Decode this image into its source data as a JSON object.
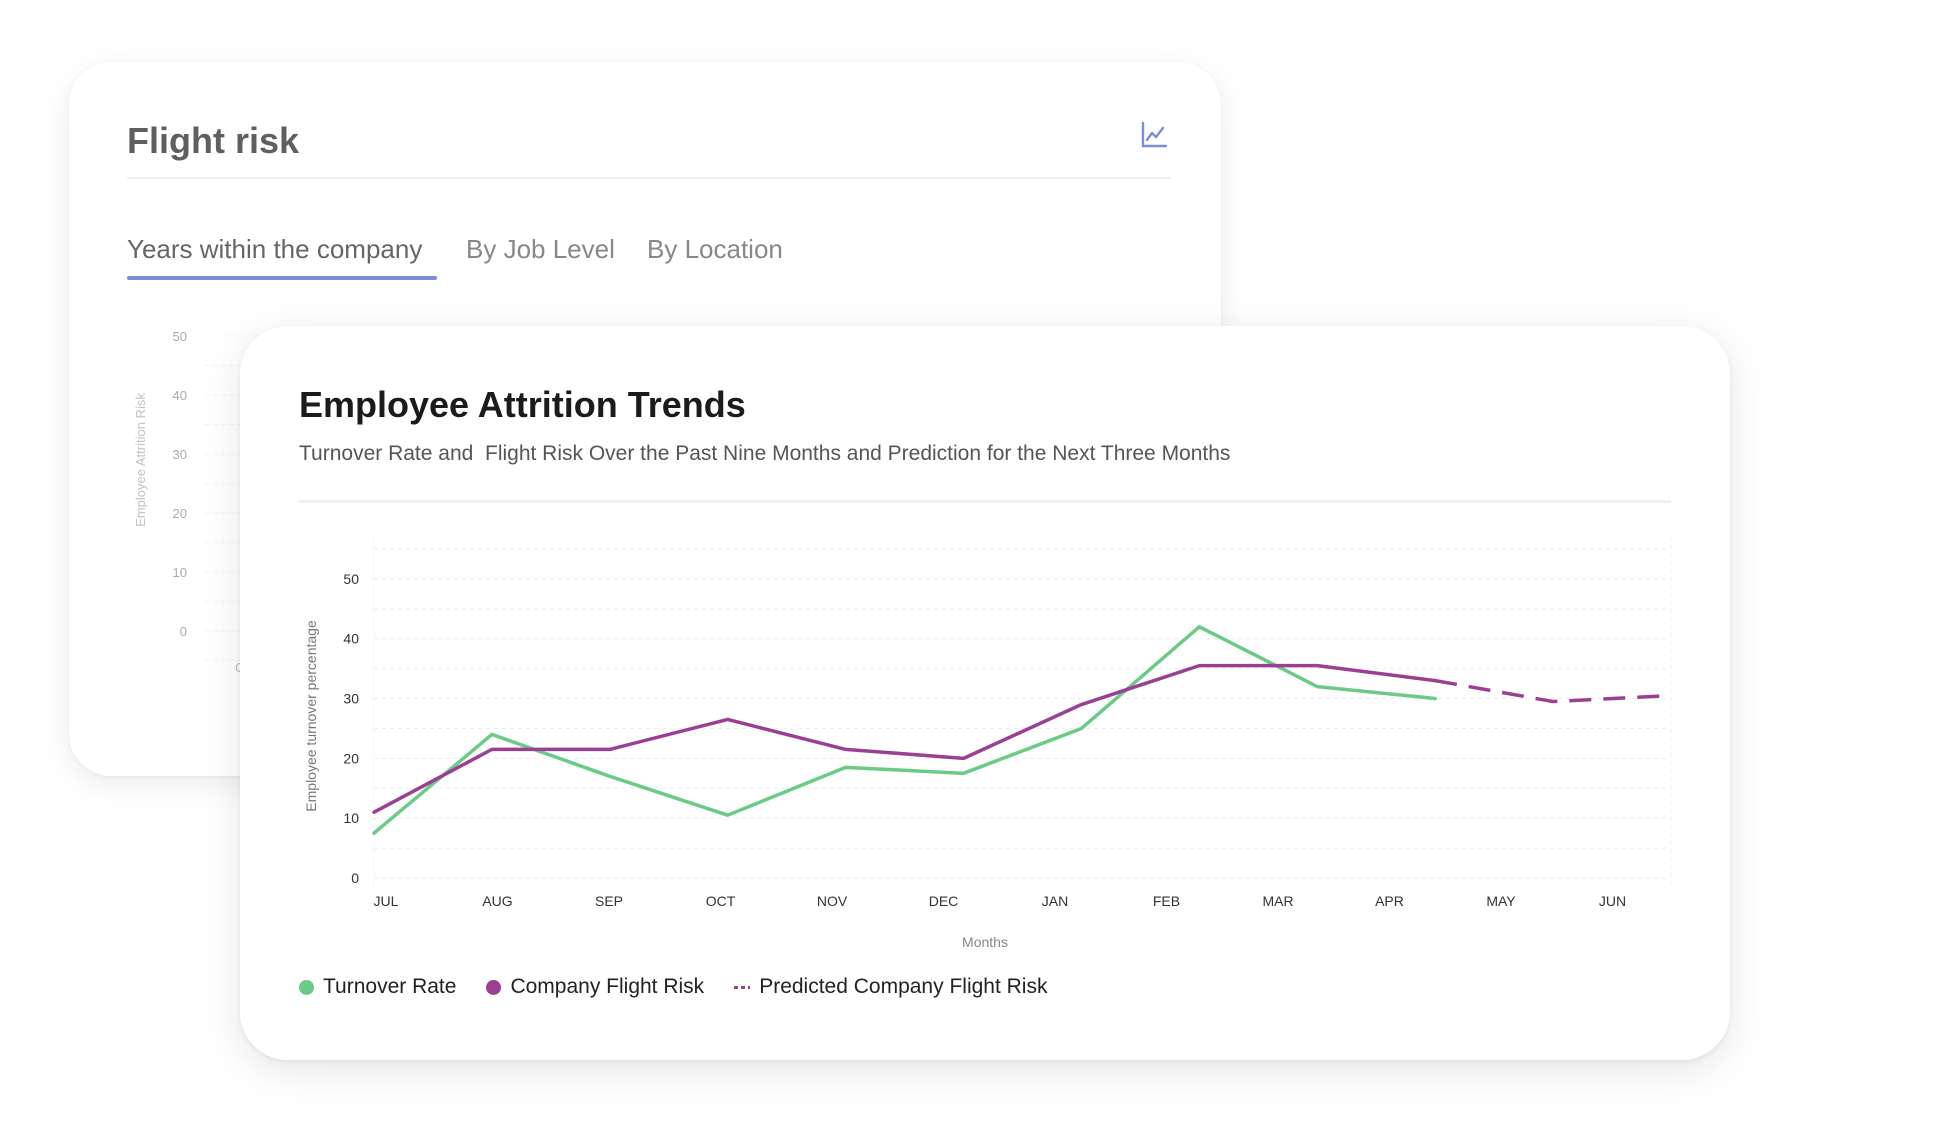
{
  "back_card": {
    "title": "Flight risk",
    "chart_icon": "line-chart-icon",
    "tabs": [
      {
        "label": "Years within the company",
        "active": true
      },
      {
        "label": "By Job Level",
        "active": false
      },
      {
        "label": "By Location",
        "active": false
      }
    ],
    "chart": {
      "ylabel": "Employee Attrition Risk",
      "yticks": [
        "50",
        "40",
        "30",
        "20",
        "10",
        "0"
      ],
      "partial_tick": "C"
    }
  },
  "front_card": {
    "title": "Employee Attrition Trends",
    "subtitle": "Turnover Rate and  Flight Risk Over the Past Nine Months and Prediction for the Next Three Months",
    "legend": [
      {
        "label": "Turnover Rate",
        "style": "dot",
        "color": "#6acb86"
      },
      {
        "label": "Company Flight Risk",
        "style": "dot",
        "color": "#9b3f93"
      },
      {
        "label": "Predicted Company Flight Risk",
        "style": "dash",
        "color": "#9b3f93"
      }
    ]
  },
  "chart_data": {
    "type": "line",
    "categories": [
      "JUL",
      "AUG",
      "SEP",
      "OCT",
      "NOV",
      "DEC",
      "JAN",
      "FEB",
      "MAR",
      "APR",
      "MAY",
      "JUN"
    ],
    "series": [
      {
        "name": "Turnover Rate",
        "color": "#6acb86",
        "style": "solid",
        "values": [
          7.5,
          24,
          17,
          10.5,
          18.5,
          17.5,
          25,
          42,
          32,
          30,
          null,
          null
        ]
      },
      {
        "name": "Company Flight Risk",
        "color": "#9b3f93",
        "style": "solid",
        "values": [
          11,
          21.5,
          21.5,
          26.5,
          21.5,
          20,
          29,
          35.5,
          35.5,
          33,
          null,
          null
        ]
      },
      {
        "name": "Predicted Company Flight Risk",
        "color": "#9b3f93",
        "style": "dashed",
        "values": [
          null,
          null,
          null,
          null,
          null,
          null,
          null,
          null,
          null,
          33,
          29.5,
          30.5
        ]
      }
    ],
    "title": "",
    "xlabel": "Months",
    "ylabel": "Employee turnover percentage",
    "ylim": [
      0,
      55
    ],
    "yticks": [
      0,
      10,
      20,
      30,
      40,
      50
    ],
    "grid": true
  }
}
